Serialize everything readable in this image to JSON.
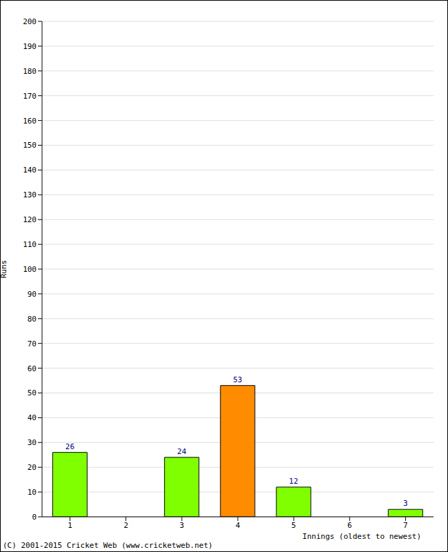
{
  "chart_data": {
    "type": "bar",
    "categories": [
      "1",
      "2",
      "3",
      "4",
      "5",
      "6",
      "7"
    ],
    "values": [
      26,
      0,
      24,
      53,
      12,
      0,
      3
    ],
    "colors": [
      "#80ff00",
      "#80ff00",
      "#80ff00",
      "#ff8c00",
      "#80ff00",
      "#80ff00",
      "#80ff00"
    ],
    "x_label": "Innings (oldest to newest)",
    "y_label": "Runs",
    "ylim": [
      0,
      200
    ],
    "yticks": [
      0,
      10,
      20,
      30,
      40,
      50,
      60,
      70,
      80,
      90,
      100,
      110,
      120,
      130,
      140,
      150,
      160,
      170,
      180,
      190,
      200
    ],
    "grid": true,
    "data_labels": true,
    "annotations": [
      "(C) 2001-2015 Cricket Web (www.cricketweb.net)"
    ]
  }
}
